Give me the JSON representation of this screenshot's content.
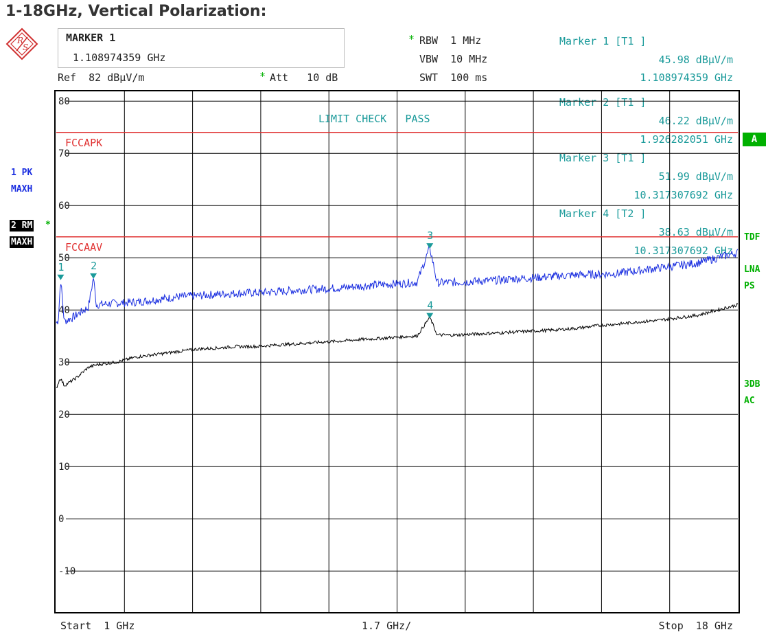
{
  "page_title": "1-18GHz, Vertical Polarization:",
  "header": {
    "marker_box_title": "MARKER 1",
    "marker_box_value": "1.108974359 GHz",
    "ref_label": "Ref  82 dBµV/m",
    "att_star": "*",
    "att_label": "Att   10 dB",
    "rbw_star": "*",
    "rbw_label": "RBW  1 MHz",
    "vbw_label": "VBW  10 MHz",
    "swt_label": "SWT  100 ms"
  },
  "markers_readout": [
    {
      "label": "Marker 1 [T1 ]",
      "level": "45.98 dBµV/m",
      "freq": "1.108974359 GHz"
    },
    {
      "label": "Marker 2 [T1 ]",
      "level": "46.22 dBµV/m",
      "freq": "1.926282051 GHz"
    },
    {
      "label": "Marker 3 [T1 ]",
      "level": "51.99 dBµV/m",
      "freq": "10.317307692 GHz"
    },
    {
      "label": "Marker 4 [T2 ]",
      "level": "38.63 dBµV/m",
      "freq": "10.317307692 GHz"
    }
  ],
  "limit_check": "LIMIT CHECK   PASS",
  "side_left": {
    "trace1_line1": "1 PK",
    "trace1_line2": "MAXH",
    "trace2_line1": "2 RM",
    "trace2_star": "*",
    "trace2_line2": "MAXH"
  },
  "side_right": {
    "a_badge": "A",
    "tdf": "TDF",
    "lna": "LNA",
    "ps": "PS",
    "db3": "3DB",
    "ac": "AC"
  },
  "footer": {
    "start": "Start  1 GHz",
    "div": "1.7 GHz/",
    "stop": "Stop  18 GHz"
  },
  "colors": {
    "trace1": "#1a2ee0",
    "trace2": "#000000",
    "limit": "#e03030",
    "marker": "#1a9a9a",
    "grid": "#000000"
  },
  "chart_data": {
    "type": "line",
    "title": "1-18GHz, Vertical Polarization:",
    "x_range_ghz": [
      1,
      18
    ],
    "y_range_dbuv": [
      -18,
      82
    ],
    "y_ticks": [
      80,
      70,
      60,
      50,
      40,
      30,
      20,
      10,
      0,
      -10
    ],
    "grid": true,
    "limits": [
      {
        "name": "FCCAPK",
        "value": 74
      },
      {
        "name": "FCCAAV",
        "value": 54
      }
    ],
    "series": [
      {
        "name": "1 PK MAXH",
        "x": [
          1.0,
          1.05,
          1.1089,
          1.2,
          1.4,
          1.6,
          1.8,
          1.9263,
          2.0,
          2.5,
          3.0,
          3.5,
          4.0,
          4.5,
          5.0,
          5.5,
          6.0,
          6.5,
          7.0,
          7.5,
          8.0,
          8.5,
          9.0,
          9.5,
          10.0,
          10.3173,
          10.5,
          11.0,
          11.5,
          12.0,
          12.5,
          13.0,
          13.5,
          14.0,
          14.5,
          15.0,
          15.5,
          16.0,
          16.5,
          17.0,
          17.5,
          18.0
        ],
        "y": [
          37.5,
          38.0,
          45.98,
          37.8,
          38.5,
          39.5,
          40.5,
          46.22,
          41.0,
          41.3,
          41.5,
          42.0,
          42.5,
          42.7,
          43.0,
          43.2,
          43.3,
          43.5,
          43.8,
          44.0,
          44.2,
          44.5,
          44.8,
          45.0,
          45.3,
          51.99,
          45.2,
          45.3,
          45.5,
          45.7,
          46.0,
          46.2,
          46.5,
          46.7,
          46.8,
          47.0,
          47.5,
          48.0,
          48.5,
          49.0,
          50.0,
          51.0
        ]
      },
      {
        "name": "2 RM MAXH",
        "x": [
          1.0,
          1.1,
          1.2,
          1.5,
          1.8,
          2.0,
          2.5,
          3.0,
          3.5,
          4.0,
          4.5,
          5.0,
          5.5,
          6.0,
          6.5,
          7.0,
          7.5,
          8.0,
          8.5,
          9.0,
          9.5,
          10.0,
          10.3173,
          10.5,
          11.0,
          11.5,
          12.0,
          12.5,
          13.0,
          13.5,
          14.0,
          14.5,
          15.0,
          15.5,
          16.0,
          16.5,
          17.0,
          17.5,
          18.0
        ],
        "y": [
          25.0,
          27.0,
          25.5,
          27.0,
          29.0,
          29.5,
          30.0,
          31.0,
          31.5,
          32.0,
          32.5,
          32.7,
          33.0,
          33.0,
          33.3,
          33.5,
          33.8,
          34.0,
          34.3,
          34.5,
          34.8,
          35.0,
          38.63,
          35.2,
          35.2,
          35.4,
          35.6,
          35.8,
          36.0,
          36.2,
          36.5,
          37.0,
          37.3,
          37.7,
          38.0,
          38.5,
          39.0,
          40.0,
          41.0
        ]
      }
    ],
    "markers": [
      {
        "label": "1",
        "x": 1.1089,
        "y": 45.98,
        "trace": 1
      },
      {
        "label": "2",
        "x": 1.9263,
        "y": 46.22,
        "trace": 1
      },
      {
        "label": "3",
        "x": 10.3173,
        "y": 51.99,
        "trace": 1
      },
      {
        "label": "4",
        "x": 10.3173,
        "y": 38.63,
        "trace": 2
      }
    ]
  }
}
